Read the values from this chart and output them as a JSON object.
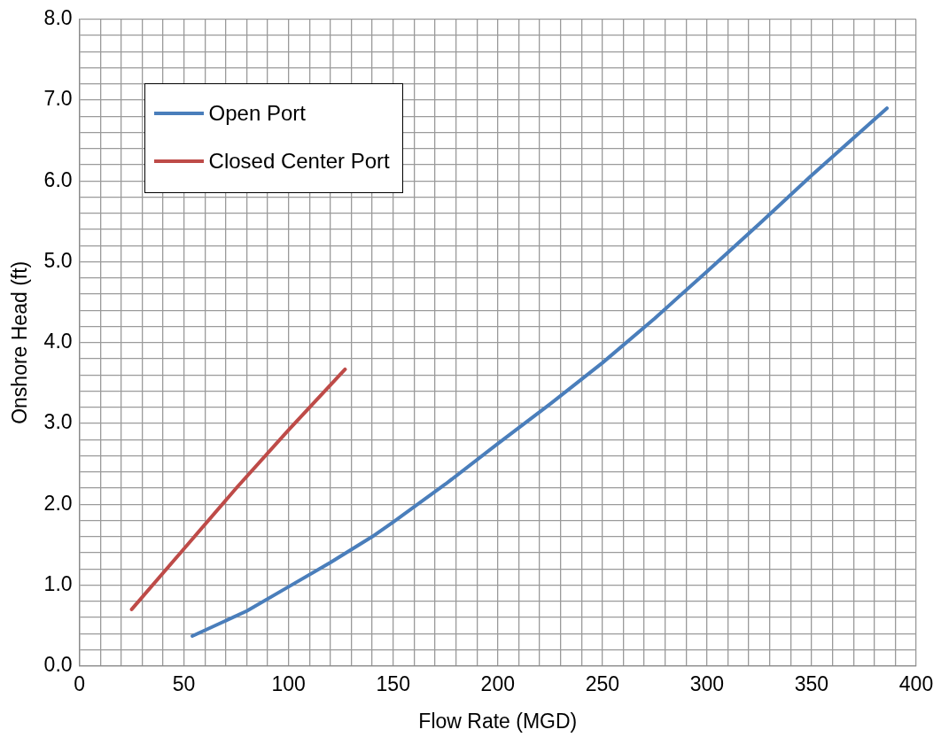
{
  "chart_data": {
    "type": "line",
    "xlabel": "Flow Rate (MGD)",
    "ylabel": "Onshore Head (ft)",
    "xlim": [
      0,
      400
    ],
    "ylim": [
      0,
      8
    ],
    "xticks": [
      0,
      {
        "value": 10,
        "label": null
      },
      {
        "value": 20,
        "label": null
      },
      {
        "value": 30,
        "label": null
      },
      {
        "value": 40,
        "label": null
      },
      50,
      {
        "value": 60,
        "label": null
      },
      {
        "value": 70,
        "label": null
      },
      {
        "value": 80,
        "label": null
      },
      {
        "value": 90,
        "label": null
      },
      100,
      {
        "value": 110,
        "label": null
      },
      {
        "value": 120,
        "label": null
      },
      {
        "value": 130,
        "label": null
      },
      {
        "value": 140,
        "label": null
      },
      150,
      {
        "value": 160,
        "label": null
      },
      {
        "value": 170,
        "label": null
      },
      {
        "value": 180,
        "label": null
      },
      {
        "value": 190,
        "label": null
      },
      200,
      {
        "value": 210,
        "label": null
      },
      {
        "value": 220,
        "label": null
      },
      {
        "value": 230,
        "label": null
      },
      {
        "value": 240,
        "label": null
      },
      250,
      {
        "value": 260,
        "label": null
      },
      {
        "value": 270,
        "label": null
      },
      {
        "value": 280,
        "label": null
      },
      {
        "value": 290,
        "label": null
      },
      300,
      {
        "value": 310,
        "label": null
      },
      {
        "value": 320,
        "label": null
      },
      {
        "value": 330,
        "label": null
      },
      {
        "value": 340,
        "label": null
      },
      350,
      {
        "value": 360,
        "label": null
      },
      {
        "value": 370,
        "label": null
      },
      {
        "value": 380,
        "label": null
      },
      {
        "value": 390,
        "label": null
      },
      400
    ],
    "yticks": [
      {
        "value": 0,
        "label": "0.0"
      },
      {
        "value": 0.2,
        "label": null
      },
      {
        "value": 0.4,
        "label": null
      },
      {
        "value": 0.6,
        "label": null
      },
      {
        "value": 0.8,
        "label": null
      },
      {
        "value": 1,
        "label": "1.0"
      },
      {
        "value": 1.2,
        "label": null
      },
      {
        "value": 1.4,
        "label": null
      },
      {
        "value": 1.6,
        "label": null
      },
      {
        "value": 1.8,
        "label": null
      },
      {
        "value": 2,
        "label": "2.0"
      },
      {
        "value": 2.2,
        "label": null
      },
      {
        "value": 2.4,
        "label": null
      },
      {
        "value": 2.6,
        "label": null
      },
      {
        "value": 2.8,
        "label": null
      },
      {
        "value": 3,
        "label": "3.0"
      },
      {
        "value": 3.2,
        "label": null
      },
      {
        "value": 3.4,
        "label": null
      },
      {
        "value": 3.6,
        "label": null
      },
      {
        "value": 3.8,
        "label": null
      },
      {
        "value": 4,
        "label": "4.0"
      },
      {
        "value": 4.2,
        "label": null
      },
      {
        "value": 4.4,
        "label": null
      },
      {
        "value": 4.6,
        "label": null
      },
      {
        "value": 4.8,
        "label": null
      },
      {
        "value": 5,
        "label": "5.0"
      },
      {
        "value": 5.2,
        "label": null
      },
      {
        "value": 5.4,
        "label": null
      },
      {
        "value": 5.6,
        "label": null
      },
      {
        "value": 5.8,
        "label": null
      },
      {
        "value": 6,
        "label": "6.0"
      },
      {
        "value": 6.2,
        "label": null
      },
      {
        "value": 6.4,
        "label": null
      },
      {
        "value": 6.6,
        "label": null
      },
      {
        "value": 6.8,
        "label": null
      },
      {
        "value": 7,
        "label": "7.0"
      },
      {
        "value": 7.2,
        "label": null
      },
      {
        "value": 7.4,
        "label": null
      },
      {
        "value": 7.6,
        "label": null
      },
      {
        "value": 7.8,
        "label": null
      },
      {
        "value": 8,
        "label": "8.0"
      }
    ],
    "grid": true,
    "legend": "top left",
    "marker": "none",
    "line_style": "solid",
    "series": [
      {
        "name": "Open Port",
        "color": "#4a7ebb",
        "x": [
          54,
          80,
          100,
          120,
          140,
          150,
          175,
          200,
          225,
          250,
          275,
          300,
          325,
          350,
          386
        ],
        "values": [
          0.37,
          0.68,
          0.98,
          1.28,
          1.6,
          1.78,
          2.25,
          2.75,
          3.24,
          3.75,
          4.3,
          4.88,
          5.47,
          6.07,
          6.9
        ]
      },
      {
        "name": "Closed Center Port",
        "color": "#be4b48",
        "x": [
          25,
          50,
          75,
          100,
          127
        ],
        "values": [
          0.7,
          1.45,
          2.2,
          2.92,
          3.67
        ]
      }
    ]
  }
}
